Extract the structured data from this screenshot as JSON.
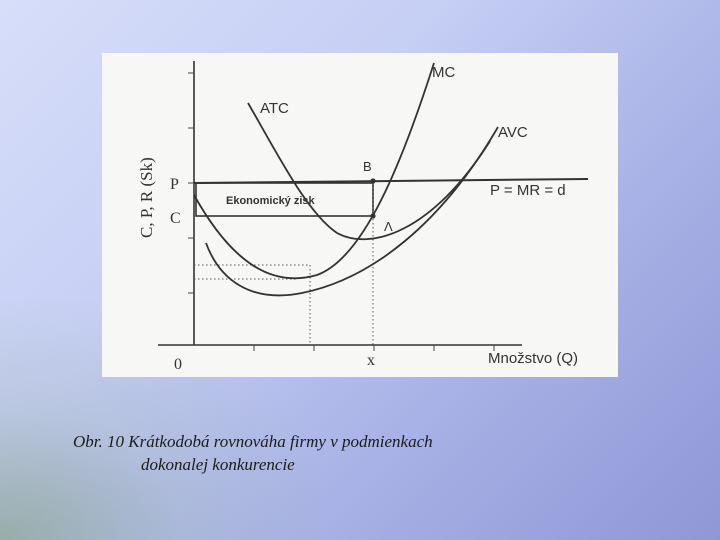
{
  "figure": {
    "y_axis_label": "C, P, R (Sk)",
    "x_axis_label": "Množstvo (Q)",
    "origin_label": "0",
    "price_label": "P",
    "cost_label": "C",
    "quantity_label": "x",
    "point_b_label": "B",
    "point_a_label": "Λ",
    "mc_label": "MC",
    "atc_label": "ATC",
    "avc_label": "AVC",
    "demand_label": "P = MR = d",
    "profit_label": "Ekonomický zisk"
  },
  "caption": {
    "line1": "Obr. 10 Krátkodobá rovnováha firmy v podmienkach",
    "line2": "dokonalej konkurencie"
  },
  "colors": {
    "ink": "#333333",
    "paper": "#f7f7f5"
  }
}
